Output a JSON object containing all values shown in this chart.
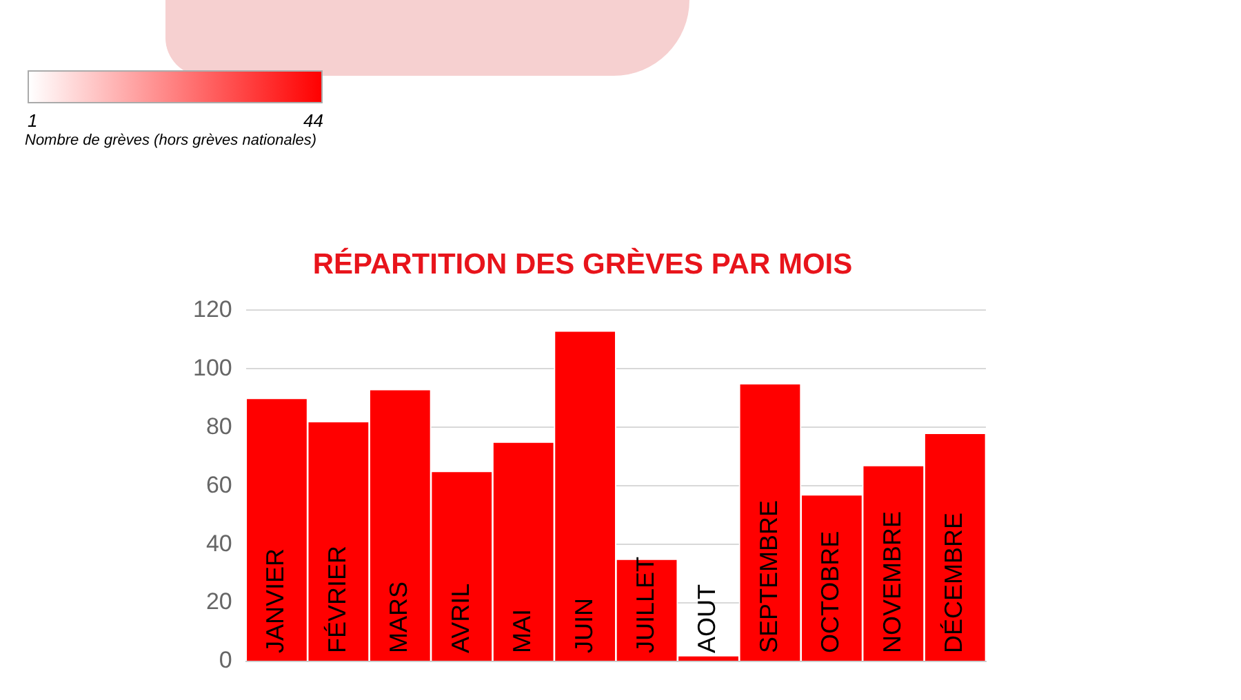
{
  "chart_data": {
    "type": "bar",
    "title": "RÉPARTITION DES GRÈVES PAR MOIS",
    "categories": [
      "JANVIER",
      "FÉVRIER",
      "MARS",
      "AVRIL",
      "MAI",
      "JUIN",
      "JUILLET",
      "AOUT",
      "SEPTEMBRE",
      "OCTOBRE",
      "NOVEMBRE",
      "DÉCEMBRE"
    ],
    "values": [
      90,
      82,
      93,
      65,
      75,
      113,
      35,
      2,
      95,
      57,
      67,
      78
    ],
    "color": "#ff0000",
    "ylim": [
      0,
      120
    ],
    "yticks": [
      0,
      20,
      40,
      60,
      80,
      100,
      120
    ],
    "grid": "y",
    "annotations": [
      "1",
      "44",
      "Nombre de grèves (hors grèves nationales)"
    ]
  }
}
